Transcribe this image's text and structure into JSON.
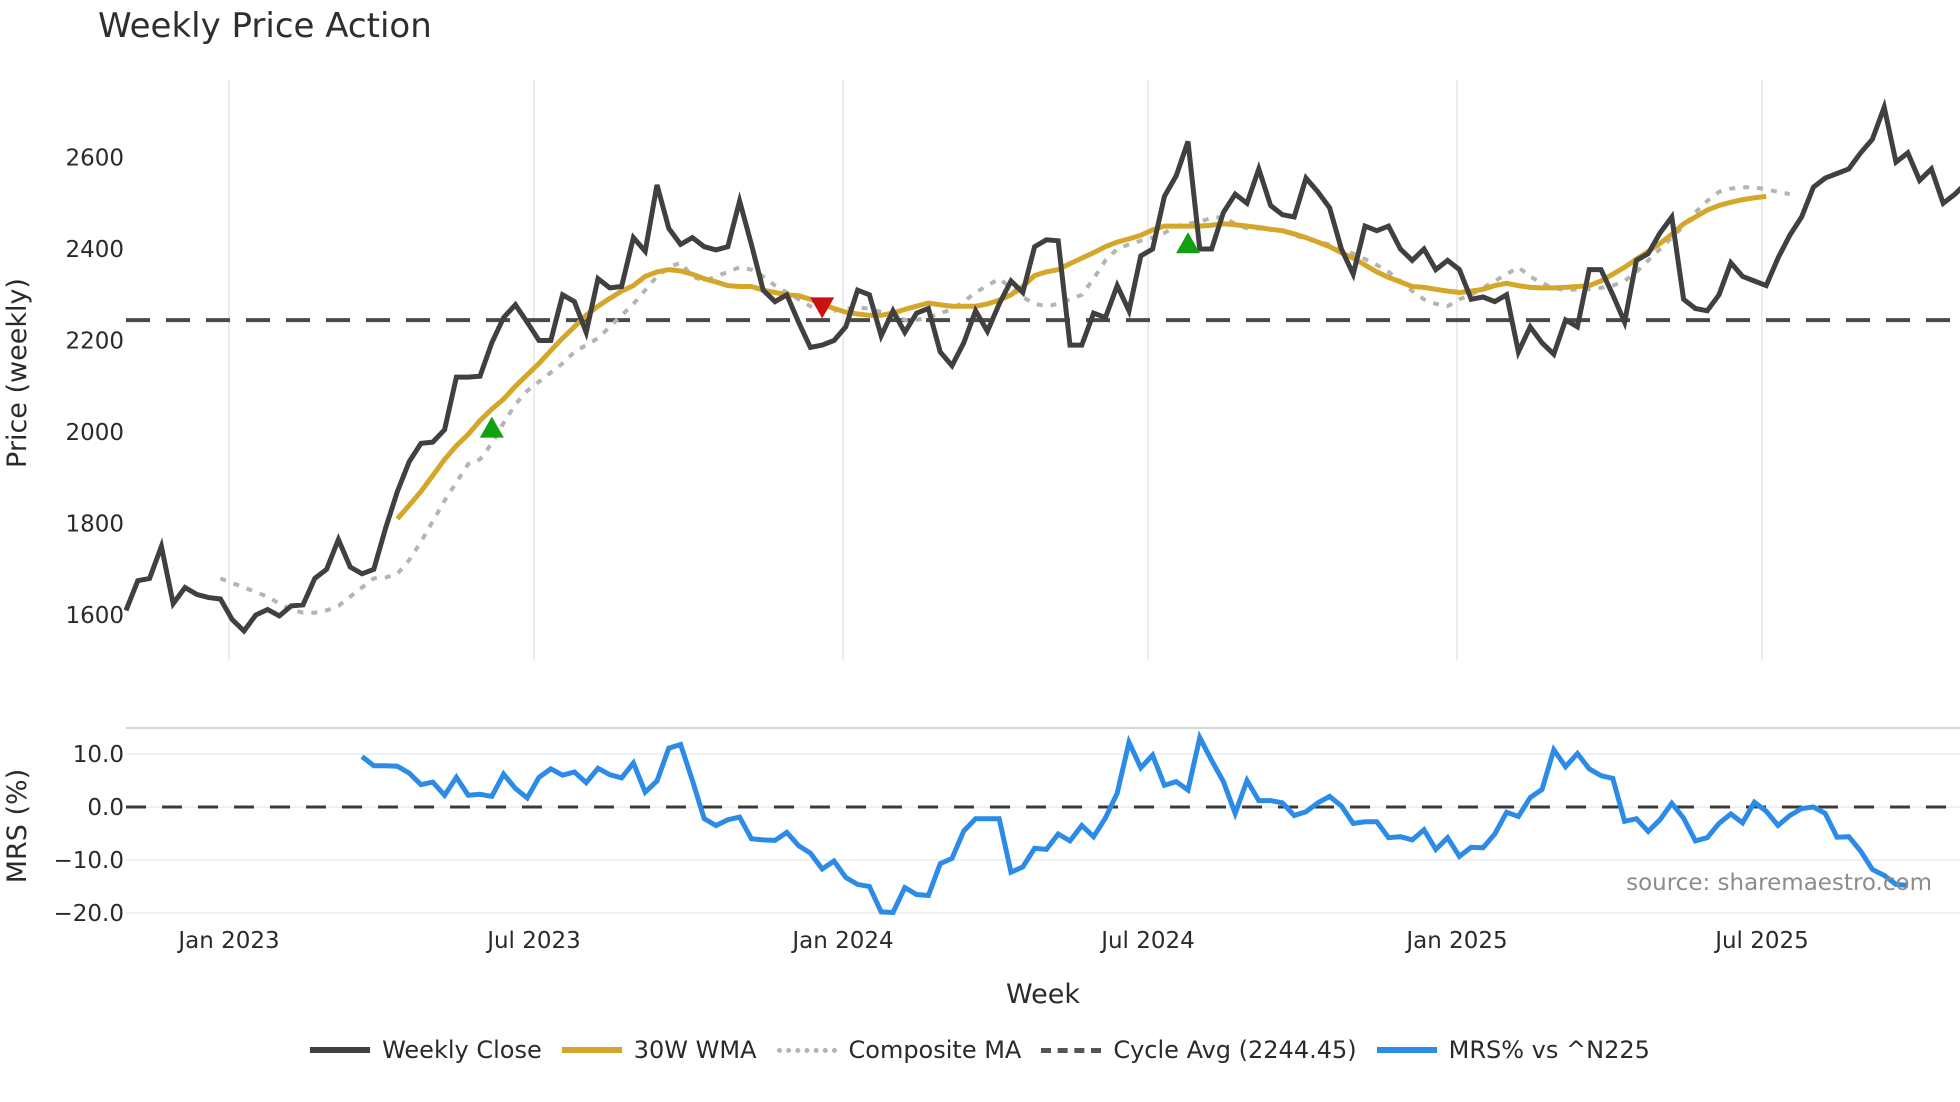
{
  "title": "Weekly Price Action",
  "source_note": "source: sharemaestro.com",
  "legend": [
    {
      "key": "close",
      "label": "Weekly Close",
      "color": "#404040",
      "style": "solid"
    },
    {
      "key": "wma",
      "label": "30W WMA",
      "color": "#d4a62a",
      "style": "solid"
    },
    {
      "key": "composite",
      "label": "Composite MA",
      "color": "#b4b4b4",
      "style": "dotted"
    },
    {
      "key": "cycle",
      "label": "Cycle Avg (2244.45)",
      "color": "#555555",
      "style": "dashed"
    },
    {
      "key": "mrs",
      "label": "MRS% vs ^N225",
      "color": "#2b8be6",
      "style": "solid"
    }
  ],
  "chart_data": [
    {
      "type": "line",
      "title": "Weekly Price Action",
      "xlabel": "Week",
      "ylabel": "Price (weekly)",
      "ylim": [
        1500,
        2780
      ],
      "yticks": [
        1600,
        1800,
        2000,
        2200,
        2400,
        2600
      ],
      "xticks": [
        "Jan 2023",
        "Jul 2023",
        "Jan 2024",
        "Jul 2024",
        "Jan 2025",
        "Jul 2025"
      ],
      "grid": "vertical",
      "x_start": "2022-11-04",
      "x_unit": "week",
      "cycle_avg": 2244.45,
      "series": [
        {
          "name": "Weekly Close",
          "values": [
            1610,
            1675,
            1680,
            1750,
            1625,
            1660,
            1645,
            1638,
            1635,
            1590,
            1565,
            1600,
            1612,
            1598,
            1620,
            1622,
            1680,
            1700,
            1765,
            1705,
            1690,
            1700,
            1790,
            1870,
            1935,
            1975,
            1978,
            2005,
            2120,
            2120,
            2122,
            2195,
            2250,
            2278,
            2240,
            2200,
            2200,
            2300,
            2285,
            2218,
            2335,
            2315,
            2318,
            2425,
            2395,
            2540,
            2445,
            2410,
            2425,
            2405,
            2398,
            2405,
            2505,
            2410,
            2310,
            2285,
            2300,
            2240,
            2185,
            2190,
            2200,
            2230,
            2310,
            2300,
            2210,
            2265,
            2218,
            2260,
            2270,
            2175,
            2145,
            2195,
            2265,
            2220,
            2280,
            2330,
            2305,
            2405,
            2420,
            2418,
            2190,
            2190,
            2260,
            2250,
            2320,
            2265,
            2385,
            2400,
            2515,
            2560,
            2635,
            2400,
            2400,
            2480,
            2520,
            2500,
            2575,
            2495,
            2475,
            2470,
            2555,
            2525,
            2490,
            2400,
            2345,
            2450,
            2440,
            2450,
            2400,
            2375,
            2400,
            2355,
            2375,
            2355,
            2290,
            2295,
            2285,
            2300,
            2175,
            2230,
            2195,
            2170,
            2245,
            2230,
            2355,
            2355,
            2300,
            2240,
            2375,
            2390,
            2435,
            2470,
            2290,
            2270,
            2265,
            2300,
            2370,
            2340,
            2330,
            2320,
            2380,
            2430,
            2470,
            2535,
            2555,
            2565,
            2575,
            2610,
            2640,
            2710,
            2590,
            2610,
            2550,
            2575,
            2500,
            2520,
            2545
          ]
        },
        {
          "name": "30W WMA",
          "start_index": 23,
          "values": [
            1810,
            1840,
            1870,
            1905,
            1940,
            1970,
            1995,
            2025,
            2050,
            2072,
            2100,
            2125,
            2150,
            2178,
            2205,
            2230,
            2255,
            2275,
            2292,
            2308,
            2320,
            2340,
            2350,
            2355,
            2352,
            2345,
            2335,
            2328,
            2320,
            2318,
            2318,
            2310,
            2305,
            2300,
            2298,
            2290,
            2280,
            2270,
            2262,
            2258,
            2255,
            2255,
            2260,
            2268,
            2275,
            2282,
            2278,
            2275,
            2275,
            2275,
            2280,
            2288,
            2300,
            2318,
            2342,
            2350,
            2355,
            2368,
            2380,
            2392,
            2405,
            2415,
            2422,
            2430,
            2442,
            2450,
            2450,
            2450,
            2450,
            2452,
            2455,
            2453,
            2450,
            2447,
            2443,
            2440,
            2433,
            2425,
            2415,
            2405,
            2392,
            2380,
            2365,
            2350,
            2338,
            2328,
            2318,
            2316,
            2312,
            2308,
            2305,
            2308,
            2312,
            2320,
            2325,
            2320,
            2316,
            2315,
            2315,
            2316,
            2318,
            2320,
            2330,
            2345,
            2360,
            2378,
            2395,
            2412,
            2432,
            2455,
            2470,
            2485,
            2495,
            2502,
            2508,
            2512,
            2515
          ]
        },
        {
          "name": "Composite MA",
          "start_index": 8,
          "values": [
            1680,
            1670,
            1660,
            1650,
            1640,
            1625,
            1612,
            1605,
            1605,
            1610,
            1620,
            1640,
            1660,
            1680,
            1682,
            1690,
            1720,
            1760,
            1805,
            1850,
            1890,
            1930,
            1940,
            1975,
            2020,
            2060,
            2090,
            2110,
            2130,
            2150,
            2175,
            2190,
            2205,
            2230,
            2255,
            2280,
            2310,
            2340,
            2360,
            2370,
            2340,
            2330,
            2340,
            2350,
            2360,
            2355,
            2340,
            2320,
            2305,
            2290,
            2275,
            2270,
            2265,
            2270,
            2272,
            2270,
            2262,
            2255,
            2245,
            2245,
            2250,
            2260,
            2268,
            2285,
            2305,
            2320,
            2335,
            2315,
            2295,
            2280,
            2275,
            2280,
            2290,
            2300,
            2335,
            2375,
            2400,
            2410,
            2418,
            2425,
            2435,
            2450,
            2455,
            2460,
            2468,
            2470,
            2455,
            2445,
            2445,
            2442,
            2440,
            2430,
            2422,
            2415,
            2410,
            2400,
            2390,
            2378,
            2365,
            2350,
            2330,
            2308,
            2290,
            2280,
            2275,
            2290,
            2300,
            2315,
            2330,
            2345,
            2360,
            2340,
            2325,
            2315,
            2310,
            2312,
            2312,
            2315,
            2320,
            2330,
            2350,
            2375,
            2400,
            2425,
            2450,
            2480,
            2505,
            2525,
            2532,
            2535,
            2535,
            2530,
            2525,
            2520
          ]
        },
        {
          "name": "Cycle Avg",
          "values": [
            2244.45
          ]
        }
      ],
      "markers": [
        {
          "type": "buy",
          "shape": "triangle-up",
          "color": "#12a012",
          "week_index": 31,
          "value": 2010
        },
        {
          "type": "sell",
          "shape": "triangle-down",
          "color": "#cc1111",
          "week_index": 59,
          "value": 2272
        },
        {
          "type": "buy",
          "shape": "triangle-up",
          "color": "#12a012",
          "week_index": 90,
          "value": 2413
        }
      ]
    },
    {
      "type": "line",
      "xlabel": "Week",
      "ylabel": "MRS (%)",
      "ylim": [
        -21,
        15
      ],
      "yticks": [
        10.0,
        0.0,
        -10.0,
        -20.0
      ],
      "ytick_labels": [
        "10.0",
        "0.0",
        "−10.0",
        "−20.0"
      ],
      "reference_line": 0.0,
      "series": [
        {
          "name": "MRS% vs ^N225",
          "start_index": 20,
          "values": [
            9.5,
            7.8,
            7.8,
            7.7,
            6.4,
            4.2,
            4.7,
            2.2,
            5.6,
            2.2,
            2.4,
            2.0,
            6.2,
            3.5,
            1.7,
            5.6,
            7.2,
            6.0,
            6.6,
            4.6,
            7.3,
            6.1,
            5.5,
            8.3,
            2.8,
            4.9,
            11.1,
            11.8,
            5.0,
            -2.2,
            -3.5,
            -2.4,
            -1.9,
            -6.0,
            -6.2,
            -6.3,
            -4.8,
            -7.3,
            -8.7,
            -11.7,
            -10.2,
            -13.3,
            -14.6,
            -15.0,
            -19.8,
            -19.9,
            -15.2,
            -16.5,
            -16.7,
            -10.7,
            -9.7,
            -4.5,
            -2.2,
            -2.2,
            -2.2,
            -12.3,
            -11.3,
            -7.8,
            -8.0,
            -5.1,
            -6.4,
            -3.5,
            -5.6,
            -2.1,
            2.6,
            12.2,
            7.4,
            9.8,
            4.1,
            4.8,
            3.2,
            13.1,
            8.8,
            4.8,
            -1.2,
            5.0,
            1.2,
            1.2,
            0.8,
            -1.6,
            -0.9,
            0.8,
            2.0,
            0.2,
            -3.1,
            -2.8,
            -2.8,
            -5.8,
            -5.6,
            -6.2,
            -4.3,
            -8.0,
            -5.8,
            -9.3,
            -7.6,
            -7.7,
            -5.1,
            -1.0,
            -1.8,
            1.8,
            3.3,
            10.8,
            7.6,
            10.1,
            7.2,
            5.9,
            5.4,
            -2.7,
            -2.2,
            -4.6,
            -2.4,
            0.7,
            -2.1,
            -6.4,
            -5.8,
            -3.1,
            -1.3,
            -3.0,
            0.9,
            -0.8,
            -3.5,
            -1.6,
            -0.3,
            0.0,
            -1.2,
            -5.7,
            -5.6,
            -8.3,
            -11.8,
            -12.9,
            -14.6,
            -14.8
          ]
        }
      ]
    }
  ]
}
